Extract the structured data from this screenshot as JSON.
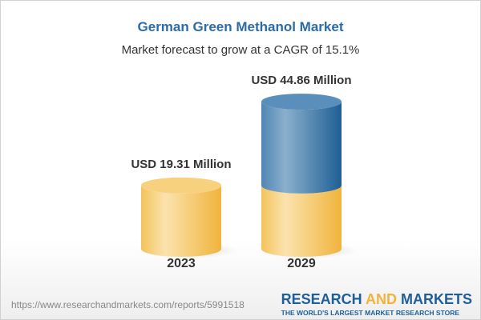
{
  "chart_data": {
    "type": "bar",
    "title": "German Green Methanol Market",
    "subtitle": "Market forecast to grow at a CAGR of 15.1%",
    "categories": [
      "2023",
      "2029"
    ],
    "values": [
      19.31,
      44.86
    ],
    "data_labels": [
      "USD 19.31 Million",
      "USD 44.86 Million"
    ],
    "unit": "USD Million",
    "style": "3d-cylinder",
    "colors": {
      "base": "#f2c14e",
      "growth": "#2f6ea3"
    }
  },
  "footer": {
    "url": "https://www.researchandmarkets.com/reports/5991518",
    "logo_word1": "RESEARCH",
    "logo_word2": "AND",
    "logo_word3": "MARKETS",
    "tagline": "THE WORLD'S LARGEST MARKET RESEARCH STORE"
  }
}
